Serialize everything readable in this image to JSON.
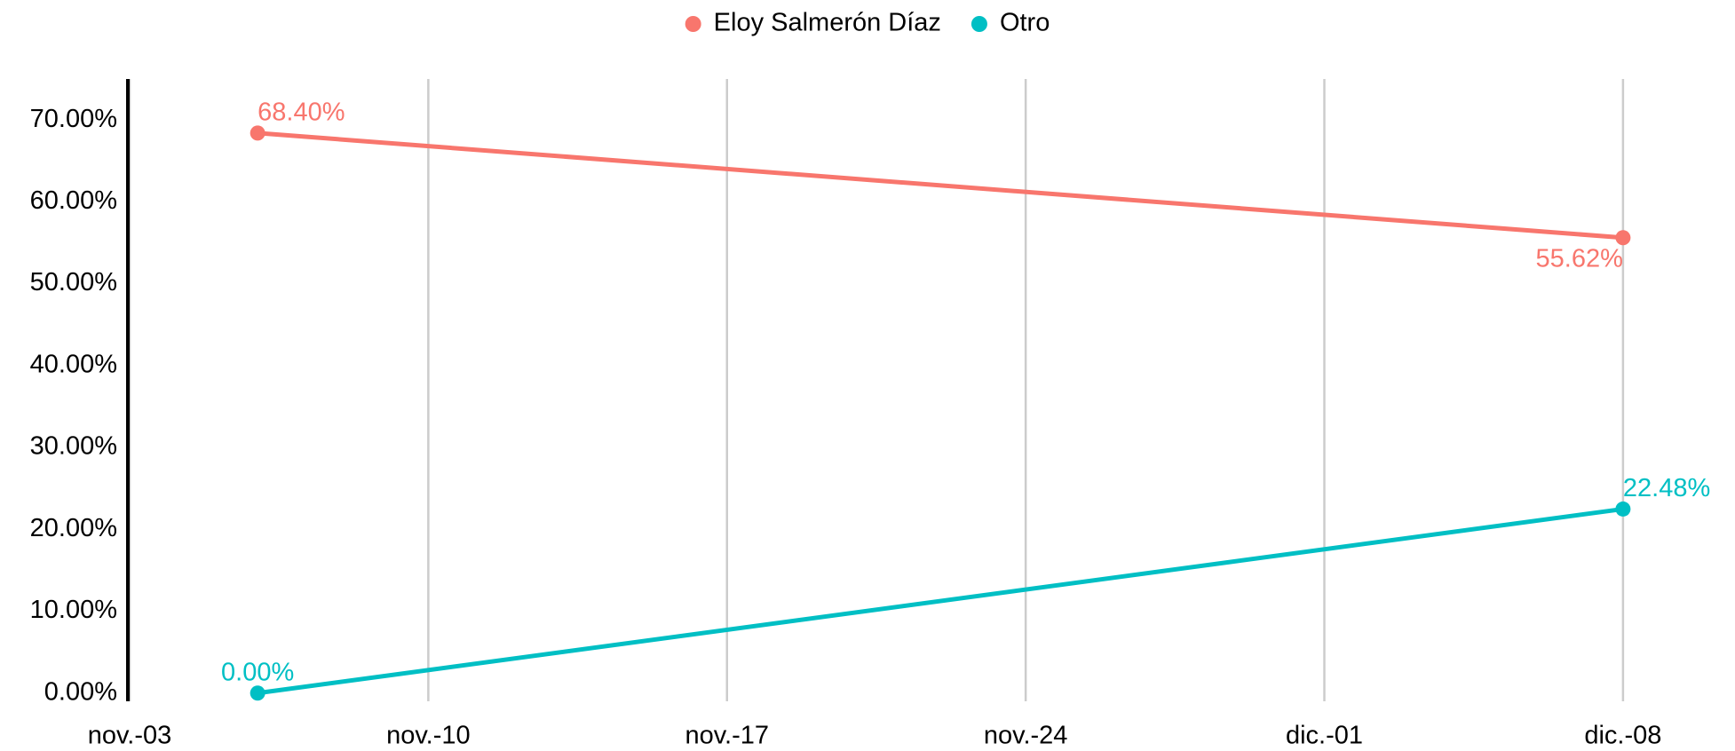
{
  "chart_data": {
    "type": "line",
    "x": [
      "11-06",
      "12-08"
    ],
    "series": [
      {
        "name": "Eloy Salmerón Díaz",
        "color": "#f8766d",
        "values": [
          68.4,
          55.62
        ],
        "value_labels": [
          "68.40%",
          "55.62%"
        ]
      },
      {
        "name": "Otro",
        "color": "#00bfc4",
        "values": [
          0,
          22.48
        ],
        "value_labels": [
          "0.00%",
          "22.48%"
        ]
      }
    ],
    "xlim": [
      "11-03",
      "12-10"
    ],
    "xticks": [
      {
        "value": "11-03",
        "label": "nov.-03"
      },
      {
        "value": "11-10",
        "label": "nov.-10"
      },
      {
        "value": "11-17",
        "label": "nov.-17"
      },
      {
        "value": "11-24",
        "label": "nov.-24"
      },
      {
        "value": "12-01",
        "label": "dic.-01"
      },
      {
        "value": "12-08",
        "label": "dic.-08"
      }
    ],
    "ylim": [
      -1,
      75
    ],
    "yticks": [
      {
        "value": 0,
        "label": "0.00%"
      },
      {
        "value": 10,
        "label": "10.00%"
      },
      {
        "value": 20,
        "label": "20.00%"
      },
      {
        "value": 30,
        "label": "30.00%"
      },
      {
        "value": 40,
        "label": "40.00%"
      },
      {
        "value": 50,
        "label": "50.00%"
      },
      {
        "value": 60,
        "label": "60.00%"
      },
      {
        "value": 70,
        "label": "70.00%"
      }
    ],
    "grid": "x",
    "legend": "top"
  }
}
